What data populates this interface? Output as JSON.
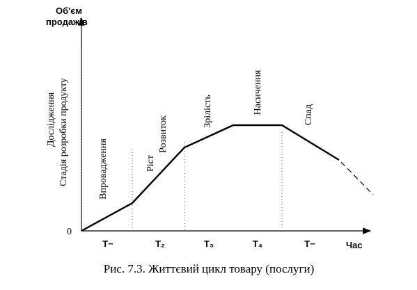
{
  "axis": {
    "y_label": [
      "Об'єм",
      "продажів"
    ],
    "origin": "0",
    "x_label": "Час"
  },
  "stages": [
    "Дослідження",
    "Стадія розробки продукту",
    "Впровадження",
    "Ріст",
    "Розвиток",
    "Зрілість",
    "Насичення",
    "Спад"
  ],
  "periods": [
    "T−",
    "T₂",
    "T₃",
    "T₄",
    "T−"
  ],
  "caption": "Рис. 7.3. Життєвий цикл товару (послуги)"
}
